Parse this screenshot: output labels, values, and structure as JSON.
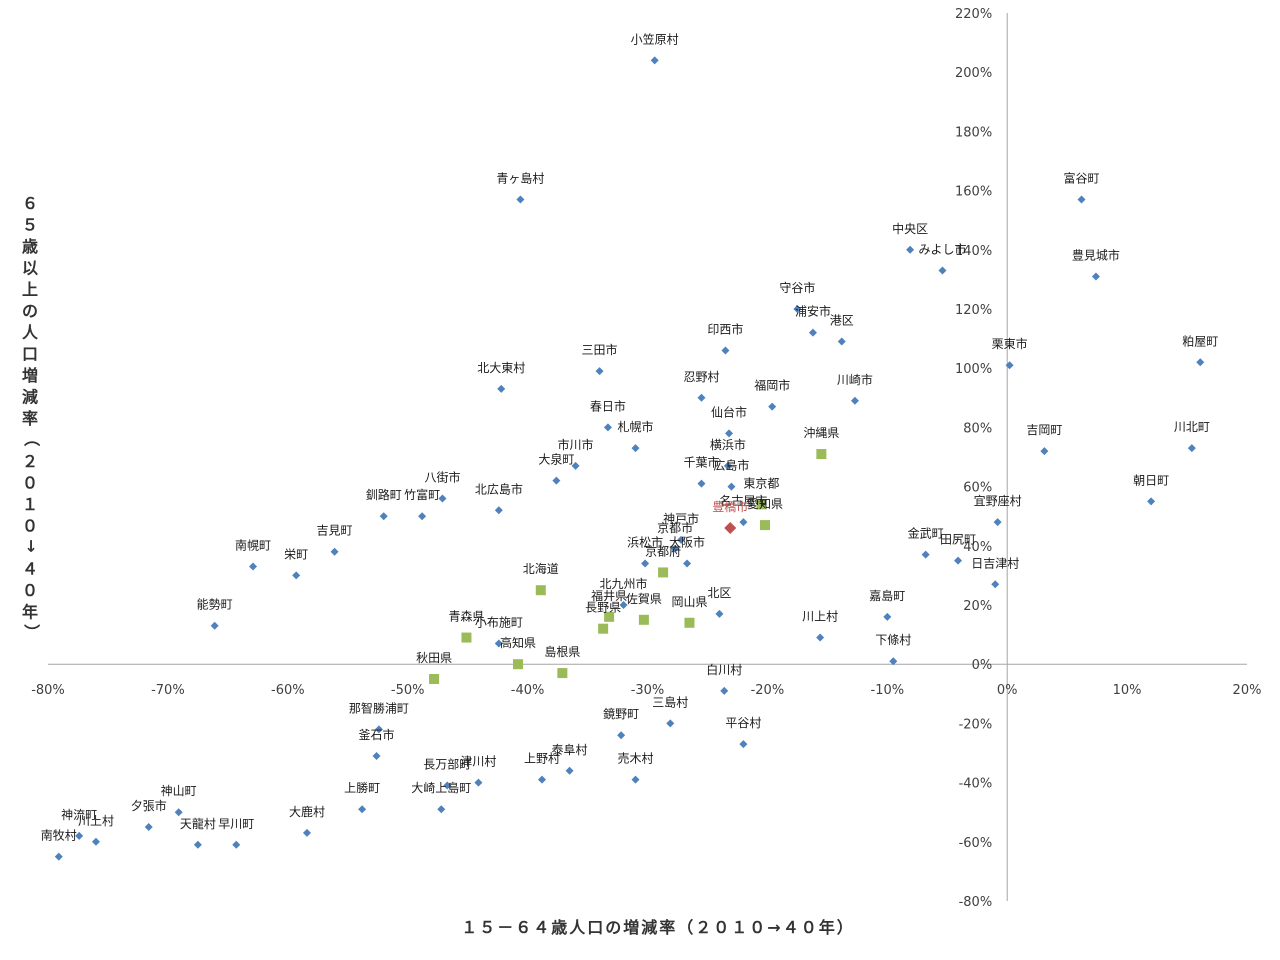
{
  "chart_data": {
    "type": "scatter",
    "xlabel": "１５－６４歳人口の増減率（２０１０→４０年）",
    "ylabel": "６５歳以上の人口増減率（２０１０→４０年）",
    "xlim": [
      -0.8,
      0.2
    ],
    "ylim": [
      -0.8,
      2.2
    ],
    "x_ticks": [
      "-80%",
      "-70%",
      "-60%",
      "-50%",
      "-40%",
      "-30%",
      "-20%",
      "-10%",
      "0%",
      "10%",
      "20%"
    ],
    "y_ticks": [
      "220%",
      "200%",
      "180%",
      "160%",
      "140%",
      "120%",
      "100%",
      "80%",
      "60%",
      "40%",
      "20%",
      "0%",
      "-20%",
      "-40%",
      "-60%",
      "-80%"
    ],
    "grid": false,
    "legend": "none",
    "colors": {
      "municipality": "#4f81bd",
      "prefecture": "#9bbb59",
      "highlight": "#c0504d"
    },
    "points": [
      {
        "label": "小笠原村",
        "x": -0.294,
        "y": 2.04,
        "kind": "municipality"
      },
      {
        "label": "青ヶ島村",
        "x": -0.406,
        "y": 1.57,
        "kind": "municipality"
      },
      {
        "label": "富谷町",
        "x": 0.062,
        "y": 1.57,
        "kind": "municipality"
      },
      {
        "label": "中央区",
        "x": -0.081,
        "y": 1.4,
        "kind": "municipality"
      },
      {
        "label": "みよし市",
        "x": -0.054,
        "y": 1.33,
        "kind": "municipality"
      },
      {
        "label": "豊見城市",
        "x": 0.074,
        "y": 1.31,
        "kind": "municipality"
      },
      {
        "label": "守谷市",
        "x": -0.175,
        "y": 1.2,
        "kind": "municipality"
      },
      {
        "label": "浦安市",
        "x": -0.162,
        "y": 1.12,
        "kind": "municipality"
      },
      {
        "label": "港区",
        "x": -0.138,
        "y": 1.09,
        "kind": "municipality"
      },
      {
        "label": "印西市",
        "x": -0.235,
        "y": 1.06,
        "kind": "municipality"
      },
      {
        "label": "粕屋町",
        "x": 0.161,
        "y": 1.02,
        "kind": "municipality"
      },
      {
        "label": "栗東市",
        "x": 0.002,
        "y": 1.01,
        "kind": "municipality"
      },
      {
        "label": "三田市",
        "x": -0.34,
        "y": 0.99,
        "kind": "municipality"
      },
      {
        "label": "北大東村",
        "x": -0.422,
        "y": 0.93,
        "kind": "municipality"
      },
      {
        "label": "忍野村",
        "x": -0.255,
        "y": 0.9,
        "kind": "municipality"
      },
      {
        "label": "川崎市",
        "x": -0.127,
        "y": 0.89,
        "kind": "municipality"
      },
      {
        "label": "福岡市",
        "x": -0.196,
        "y": 0.87,
        "kind": "municipality"
      },
      {
        "label": "春日市",
        "x": -0.333,
        "y": 0.8,
        "kind": "municipality"
      },
      {
        "label": "仙台市",
        "x": -0.232,
        "y": 0.78,
        "kind": "municipality"
      },
      {
        "label": "札幌市",
        "x": -0.31,
        "y": 0.73,
        "kind": "municipality"
      },
      {
        "label": "川北町",
        "x": 0.154,
        "y": 0.73,
        "kind": "municipality"
      },
      {
        "label": "吉岡町",
        "x": 0.031,
        "y": 0.72,
        "kind": "municipality"
      },
      {
        "label": "沖縄県",
        "x": -0.155,
        "y": 0.71,
        "kind": "prefecture"
      },
      {
        "label": "市川市",
        "x": -0.36,
        "y": 0.67,
        "kind": "municipality"
      },
      {
        "label": "横浜市",
        "x": -0.233,
        "y": 0.67,
        "kind": "municipality"
      },
      {
        "label": "大泉町",
        "x": -0.376,
        "y": 0.62,
        "kind": "municipality"
      },
      {
        "label": "千葉市",
        "x": -0.255,
        "y": 0.61,
        "kind": "municipality"
      },
      {
        "label": "広島市",
        "x": -0.23,
        "y": 0.6,
        "kind": "municipality"
      },
      {
        "label": "八街市",
        "x": -0.471,
        "y": 0.56,
        "kind": "municipality"
      },
      {
        "label": "朝日町",
        "x": 0.12,
        "y": 0.55,
        "kind": "municipality"
      },
      {
        "label": "東京都",
        "x": -0.205,
        "y": 0.54,
        "kind": "prefecture"
      },
      {
        "label": "北広島市",
        "x": -0.424,
        "y": 0.52,
        "kind": "municipality"
      },
      {
        "label": "愛知県",
        "x": -0.202,
        "y": 0.47,
        "kind": "prefecture"
      },
      {
        "label": "名古屋市",
        "x": -0.22,
        "y": 0.48,
        "kind": "municipality"
      },
      {
        "label": "釧路町",
        "x": -0.52,
        "y": 0.5,
        "kind": "municipality"
      },
      {
        "label": "竹富町",
        "x": -0.488,
        "y": 0.5,
        "kind": "municipality"
      },
      {
        "label": "宜野座村",
        "x": -0.008,
        "y": 0.48,
        "kind": "municipality"
      },
      {
        "label": "豊橋市",
        "x": -0.231,
        "y": 0.46,
        "kind": "highlight"
      },
      {
        "label": "吉見町",
        "x": -0.561,
        "y": 0.38,
        "kind": "municipality"
      },
      {
        "label": "神戸市",
        "x": -0.272,
        "y": 0.42,
        "kind": "municipality"
      },
      {
        "label": "京都市",
        "x": -0.277,
        "y": 0.39,
        "kind": "municipality"
      },
      {
        "label": "金武町",
        "x": -0.068,
        "y": 0.37,
        "kind": "municipality"
      },
      {
        "label": "大阪市",
        "x": -0.267,
        "y": 0.34,
        "kind": "municipality"
      },
      {
        "label": "浜松市",
        "x": -0.302,
        "y": 0.34,
        "kind": "municipality"
      },
      {
        "label": "京都府",
        "x": -0.287,
        "y": 0.31,
        "kind": "prefecture"
      },
      {
        "label": "田尻町",
        "x": -0.041,
        "y": 0.35,
        "kind": "municipality"
      },
      {
        "label": "南幌町",
        "x": -0.629,
        "y": 0.33,
        "kind": "municipality"
      },
      {
        "label": "栄町",
        "x": -0.593,
        "y": 0.3,
        "kind": "municipality"
      },
      {
        "label": "日吉津村",
        "x": -0.01,
        "y": 0.27,
        "kind": "municipality"
      },
      {
        "label": "北海道",
        "x": -0.389,
        "y": 0.25,
        "kind": "prefecture"
      },
      {
        "label": "北九州市",
        "x": -0.32,
        "y": 0.2,
        "kind": "municipality"
      },
      {
        "label": "福井県",
        "x": -0.332,
        "y": 0.16,
        "kind": "prefecture"
      },
      {
        "label": "北区",
        "x": -0.24,
        "y": 0.17,
        "kind": "municipality"
      },
      {
        "label": "佐賀県",
        "x": -0.303,
        "y": 0.15,
        "kind": "prefecture"
      },
      {
        "label": "嘉島町",
        "x": -0.1,
        "y": 0.16,
        "kind": "municipality"
      },
      {
        "label": "岡山県",
        "x": -0.265,
        "y": 0.14,
        "kind": "prefecture"
      },
      {
        "label": "能勢町",
        "x": -0.661,
        "y": 0.13,
        "kind": "municipality"
      },
      {
        "label": "長野県",
        "x": -0.337,
        "y": 0.12,
        "kind": "prefecture"
      },
      {
        "label": "川上村",
        "x": -0.156,
        "y": 0.09,
        "kind": "municipality"
      },
      {
        "label": "青森県",
        "x": -0.451,
        "y": 0.09,
        "kind": "prefecture"
      },
      {
        "label": "小布施町",
        "x": -0.424,
        "y": 0.07,
        "kind": "municipality"
      },
      {
        "label": "下條村",
        "x": -0.095,
        "y": 0.01,
        "kind": "municipality"
      },
      {
        "label": "高知県",
        "x": -0.408,
        "y": 0.0,
        "kind": "prefecture"
      },
      {
        "label": "島根県",
        "x": -0.371,
        "y": -0.03,
        "kind": "prefecture"
      },
      {
        "label": "秋田県",
        "x": -0.478,
        "y": -0.05,
        "kind": "prefecture"
      },
      {
        "label": "白川村",
        "x": -0.236,
        "y": -0.09,
        "kind": "municipality"
      },
      {
        "label": "三島村",
        "x": -0.281,
        "y": -0.2,
        "kind": "municipality"
      },
      {
        "label": "那智勝浦町",
        "x": -0.524,
        "y": -0.22,
        "kind": "municipality"
      },
      {
        "label": "鏡野町",
        "x": -0.322,
        "y": -0.24,
        "kind": "municipality"
      },
      {
        "label": "平谷村",
        "x": -0.22,
        "y": -0.27,
        "kind": "municipality"
      },
      {
        "label": "釜石市",
        "x": -0.526,
        "y": -0.31,
        "kind": "municipality"
      },
      {
        "label": "泰阜村",
        "x": -0.365,
        "y": -0.36,
        "kind": "municipality"
      },
      {
        "label": "売木村",
        "x": -0.31,
        "y": -0.39,
        "kind": "municipality"
      },
      {
        "label": "上野村",
        "x": -0.388,
        "y": -0.39,
        "kind": "municipality"
      },
      {
        "label": "津川村",
        "x": -0.441,
        "y": -0.4,
        "kind": "municipality"
      },
      {
        "label": "長万部町",
        "x": -0.467,
        "y": -0.41,
        "kind": "municipality"
      },
      {
        "label": "上勝町",
        "x": -0.538,
        "y": -0.49,
        "kind": "municipality"
      },
      {
        "label": "大崎上島町",
        "x": -0.472,
        "y": -0.49,
        "kind": "municipality"
      },
      {
        "label": "神山町",
        "x": -0.691,
        "y": -0.5,
        "kind": "municipality"
      },
      {
        "label": "大鹿村",
        "x": -0.584,
        "y": -0.57,
        "kind": "municipality"
      },
      {
        "label": "夕張市",
        "x": -0.716,
        "y": -0.55,
        "kind": "municipality"
      },
      {
        "label": "神流町",
        "x": -0.774,
        "y": -0.58,
        "kind": "municipality"
      },
      {
        "label": "川上村",
        "x": -0.76,
        "y": -0.6,
        "kind": "municipality"
      },
      {
        "label": "天龍村",
        "x": -0.675,
        "y": -0.61,
        "kind": "municipality"
      },
      {
        "label": "早川町",
        "x": -0.643,
        "y": -0.61,
        "kind": "municipality"
      },
      {
        "label": "南牧村",
        "x": -0.791,
        "y": -0.65,
        "kind": "municipality"
      }
    ]
  }
}
